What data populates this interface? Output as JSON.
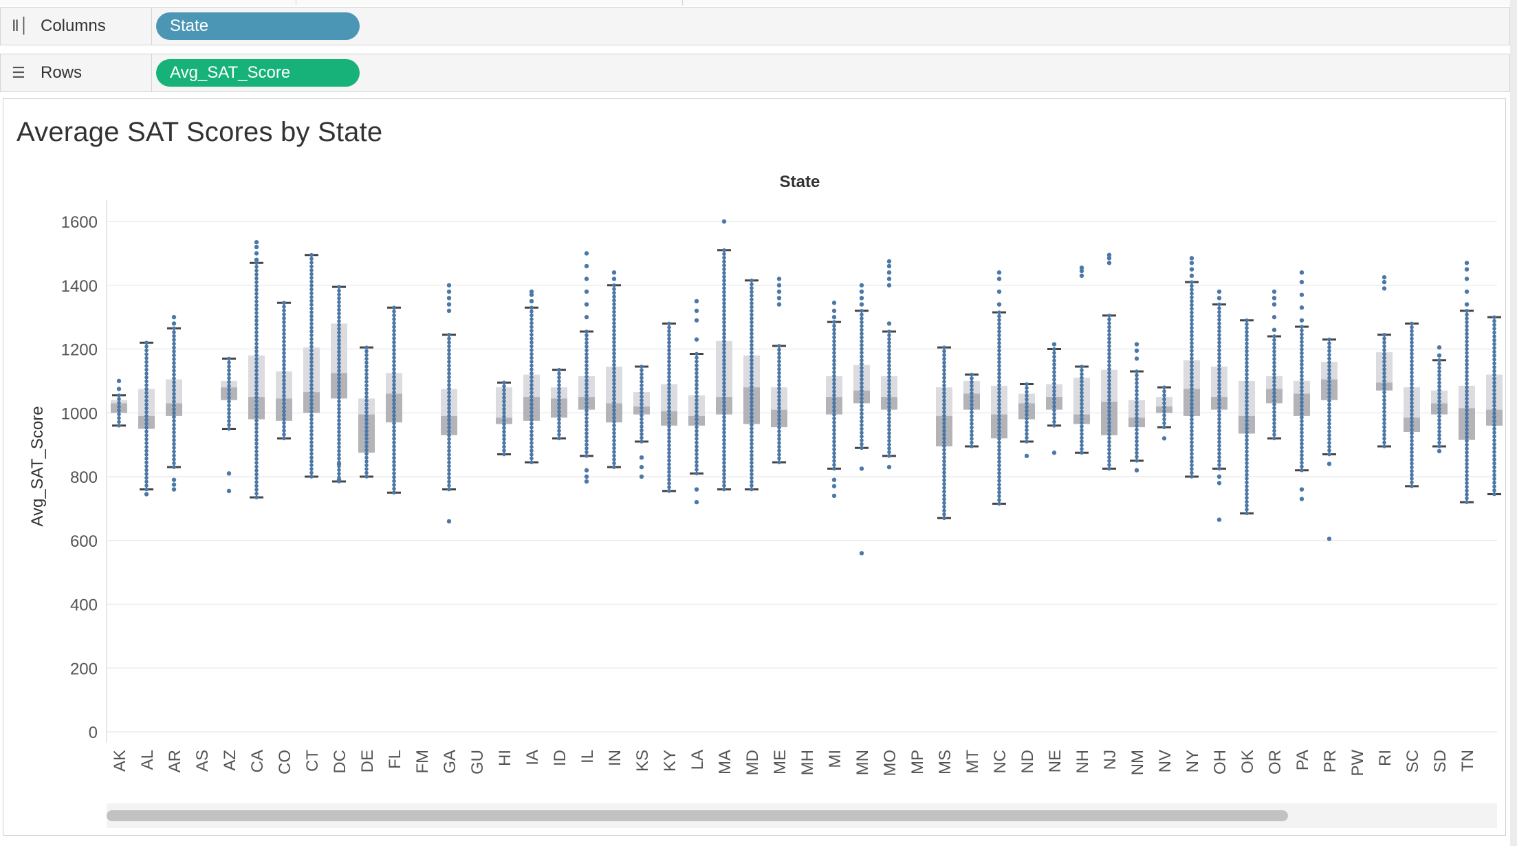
{
  "shelves": {
    "columns": {
      "label": "Columns",
      "pill": "State",
      "pill_color": "#4b96b4"
    },
    "rows": {
      "label": "Rows",
      "pill": "Avg_SAT_Score",
      "pill_color": "#16b27a"
    }
  },
  "icons": {
    "columns": "columns-icon",
    "rows": "rows-list-icon"
  },
  "colors": {
    "dots": "#4c78a8",
    "box_light": "#dcdce0",
    "box_dark": "#b4b4b8",
    "whisker": "#444444"
  },
  "chart_data": {
    "type": "box",
    "title": "Average SAT Scores by State",
    "xlabel": "State",
    "ylabel": "Avg_SAT_Score",
    "ylim": [
      0,
      1600
    ],
    "yticks": [
      0,
      200,
      400,
      600,
      800,
      1000,
      1200,
      1400,
      1600
    ],
    "grid": "horizontal",
    "categories": [
      "AK",
      "AL",
      "AR",
      "AS",
      "AZ",
      "CA",
      "CO",
      "CT",
      "DC",
      "DE",
      "FL",
      "FM",
      "GA",
      "GU",
      "HI",
      "IA",
      "ID",
      "IL",
      "IN",
      "KS",
      "KY",
      "LA",
      "MA",
      "MD",
      "ME",
      "MH",
      "MI",
      "MN",
      "MO",
      "MP",
      "MS",
      "MT",
      "NC",
      "ND",
      "NE",
      "NH",
      "NJ",
      "NM",
      "NV",
      "NY",
      "OH",
      "OK",
      "OR",
      "PA",
      "PR",
      "PW",
      "RI",
      "SC",
      "SD",
      "TN"
    ],
    "series": [
      {
        "state": "AK",
        "min": 960,
        "q1": 1000,
        "median": 1030,
        "q3": 1040,
        "max": 1055,
        "outliers": [
          1075,
          1100
        ]
      },
      {
        "state": "AL",
        "min": 760,
        "q1": 950,
        "median": 990,
        "q3": 1075,
        "max": 1220,
        "outliers": [
          745
        ]
      },
      {
        "state": "AR",
        "min": 830,
        "q1": 990,
        "median": 1030,
        "q3": 1105,
        "max": 1265,
        "outliers": [
          760,
          775,
          790,
          1280,
          1300
        ]
      },
      {
        "state": "AS"
      },
      {
        "state": "AZ",
        "min": 950,
        "q1": 1040,
        "median": 1080,
        "q3": 1100,
        "max": 1170,
        "outliers": [
          755,
          810
        ]
      },
      {
        "state": "CA",
        "min": 735,
        "q1": 980,
        "median": 1050,
        "q3": 1180,
        "max": 1470,
        "outliers": [
          1480,
          1500,
          1520,
          1535
        ]
      },
      {
        "state": "CO",
        "min": 920,
        "q1": 975,
        "median": 1045,
        "q3": 1130,
        "max": 1345,
        "outliers": []
      },
      {
        "state": "CT",
        "min": 800,
        "q1": 1000,
        "median": 1065,
        "q3": 1205,
        "max": 1495,
        "outliers": []
      },
      {
        "state": "DC",
        "min": 785,
        "q1": 1045,
        "median": 1125,
        "q3": 1280,
        "max": 1395,
        "outliers": [
          790,
          840
        ]
      },
      {
        "state": "DE",
        "min": 800,
        "q1": 875,
        "median": 995,
        "q3": 1045,
        "max": 1205,
        "outliers": []
      },
      {
        "state": "FL",
        "min": 750,
        "q1": 970,
        "median": 1060,
        "q3": 1125,
        "max": 1330,
        "outliers": []
      },
      {
        "state": "FM"
      },
      {
        "state": "GA",
        "min": 760,
        "q1": 930,
        "median": 990,
        "q3": 1075,
        "max": 1245,
        "outliers": [
          660,
          1320,
          1340,
          1360,
          1380,
          1400
        ]
      },
      {
        "state": "GU"
      },
      {
        "state": "HI",
        "min": 870,
        "q1": 965,
        "median": 985,
        "q3": 1080,
        "max": 1095,
        "outliers": []
      },
      {
        "state": "IA",
        "min": 845,
        "q1": 975,
        "median": 1050,
        "q3": 1120,
        "max": 1330,
        "outliers": [
          1350,
          1370,
          1380
        ]
      },
      {
        "state": "ID",
        "min": 920,
        "q1": 985,
        "median": 1045,
        "q3": 1080,
        "max": 1135,
        "outliers": []
      },
      {
        "state": "IL",
        "min": 865,
        "q1": 1010,
        "median": 1050,
        "q3": 1115,
        "max": 1255,
        "outliers": [
          785,
          800,
          820,
          1300,
          1340,
          1380,
          1420,
          1460,
          1500
        ]
      },
      {
        "state": "IN",
        "min": 830,
        "q1": 970,
        "median": 1030,
        "q3": 1145,
        "max": 1400,
        "outliers": [
          1420,
          1440
        ]
      },
      {
        "state": "KS",
        "min": 910,
        "q1": 995,
        "median": 1020,
        "q3": 1065,
        "max": 1145,
        "outliers": [
          800,
          830,
          860
        ]
      },
      {
        "state": "KY",
        "min": 755,
        "q1": 960,
        "median": 1005,
        "q3": 1090,
        "max": 1280,
        "outliers": []
      },
      {
        "state": "LA",
        "min": 810,
        "q1": 960,
        "median": 990,
        "q3": 1055,
        "max": 1185,
        "outliers": [
          720,
          760,
          1230,
          1290,
          1320,
          1350
        ]
      },
      {
        "state": "MA",
        "min": 760,
        "q1": 995,
        "median": 1050,
        "q3": 1225,
        "max": 1510,
        "outliers": [
          1600
        ]
      },
      {
        "state": "MD",
        "min": 760,
        "q1": 965,
        "median": 1080,
        "q3": 1180,
        "max": 1415,
        "outliers": []
      },
      {
        "state": "ME",
        "min": 845,
        "q1": 955,
        "median": 1010,
        "q3": 1080,
        "max": 1210,
        "outliers": [
          1340,
          1360,
          1380,
          1400,
          1420
        ]
      },
      {
        "state": "MH"
      },
      {
        "state": "MI",
        "min": 825,
        "q1": 995,
        "median": 1050,
        "q3": 1115,
        "max": 1285,
        "outliers": [
          740,
          770,
          790,
          1300,
          1320,
          1345
        ]
      },
      {
        "state": "MN",
        "min": 890,
        "q1": 1030,
        "median": 1070,
        "q3": 1150,
        "max": 1320,
        "outliers": [
          560,
          825,
          1340,
          1360,
          1380,
          1400
        ]
      },
      {
        "state": "MO",
        "min": 865,
        "q1": 1010,
        "median": 1050,
        "q3": 1115,
        "max": 1255,
        "outliers": [
          830,
          1280,
          1400,
          1420,
          1440,
          1460,
          1475
        ]
      },
      {
        "state": "MP"
      },
      {
        "state": "MS",
        "min": 670,
        "q1": 895,
        "median": 990,
        "q3": 1080,
        "max": 1205,
        "outliers": []
      },
      {
        "state": "MT",
        "min": 895,
        "q1": 1010,
        "median": 1060,
        "q3": 1100,
        "max": 1120,
        "outliers": []
      },
      {
        "state": "NC",
        "min": 715,
        "q1": 920,
        "median": 995,
        "q3": 1085,
        "max": 1315,
        "outliers": [
          1340,
          1380,
          1420,
          1440
        ]
      },
      {
        "state": "ND",
        "min": 910,
        "q1": 980,
        "median": 1030,
        "q3": 1060,
        "max": 1090,
        "outliers": [
          865
        ]
      },
      {
        "state": "NE",
        "min": 960,
        "q1": 1010,
        "median": 1050,
        "q3": 1090,
        "max": 1200,
        "outliers": [
          875,
          1215
        ]
      },
      {
        "state": "NH",
        "min": 875,
        "q1": 965,
        "median": 995,
        "q3": 1110,
        "max": 1145,
        "outliers": [
          1430,
          1445,
          1455
        ]
      },
      {
        "state": "NJ",
        "min": 825,
        "q1": 930,
        "median": 1035,
        "q3": 1135,
        "max": 1305,
        "outliers": [
          1470,
          1485,
          1495
        ]
      },
      {
        "state": "NM",
        "min": 850,
        "q1": 955,
        "median": 985,
        "q3": 1040,
        "max": 1130,
        "outliers": [
          820,
          1170,
          1195,
          1215
        ]
      },
      {
        "state": "NV",
        "min": 955,
        "q1": 1000,
        "median": 1020,
        "q3": 1050,
        "max": 1080,
        "outliers": [
          920
        ]
      },
      {
        "state": "NY",
        "min": 800,
        "q1": 990,
        "median": 1075,
        "q3": 1165,
        "max": 1410,
        "outliers": [
          1430,
          1450,
          1470,
          1485
        ]
      },
      {
        "state": "OH",
        "min": 825,
        "q1": 1010,
        "median": 1050,
        "q3": 1145,
        "max": 1340,
        "outliers": [
          665,
          780,
          800,
          1360,
          1380
        ]
      },
      {
        "state": "OK",
        "min": 685,
        "q1": 935,
        "median": 990,
        "q3": 1100,
        "max": 1290,
        "outliers": []
      },
      {
        "state": "OR",
        "min": 920,
        "q1": 1030,
        "median": 1075,
        "q3": 1115,
        "max": 1240,
        "outliers": [
          1260,
          1300,
          1340,
          1360,
          1380
        ]
      },
      {
        "state": "PA",
        "min": 820,
        "q1": 990,
        "median": 1060,
        "q3": 1100,
        "max": 1270,
        "outliers": [
          730,
          760,
          1290,
          1330,
          1370,
          1410,
          1440
        ]
      },
      {
        "state": "PR",
        "min": 870,
        "q1": 1040,
        "median": 1105,
        "q3": 1160,
        "max": 1230,
        "outliers": [
          605,
          840
        ]
      },
      {
        "state": "PW"
      },
      {
        "state": "RI",
        "min": 895,
        "q1": 1070,
        "median": 1095,
        "q3": 1190,
        "max": 1245,
        "outliers": [
          1390,
          1410,
          1425
        ]
      },
      {
        "state": "SC",
        "min": 770,
        "q1": 940,
        "median": 985,
        "q3": 1080,
        "max": 1280,
        "outliers": []
      },
      {
        "state": "SD",
        "min": 895,
        "q1": 995,
        "median": 1030,
        "q3": 1070,
        "max": 1165,
        "outliers": [
          880,
          1180,
          1205
        ]
      },
      {
        "state": "TN",
        "min": 720,
        "q1": 915,
        "median": 1015,
        "q3": 1085,
        "max": 1320,
        "outliers": [
          1340,
          1380,
          1420,
          1450,
          1470
        ]
      }
    ],
    "partial_next_category": {
      "min": 745,
      "q1": 960,
      "median": 1010,
      "q3": 1120,
      "max": 1300
    }
  }
}
